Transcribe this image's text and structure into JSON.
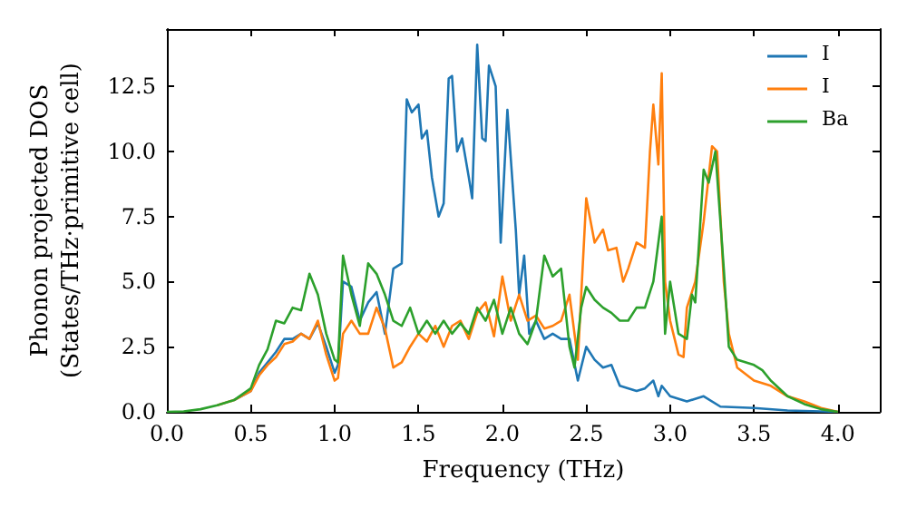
{
  "chart_data": {
    "type": "line",
    "xlabel": "Frequency (THz)",
    "ylabel": "Phonon projected DOS\n(States/THz·primitive cell)",
    "xlim": [
      0,
      4.25
    ],
    "ylim": [
      0,
      14.7
    ],
    "xticks": [
      {
        "value": 0,
        "label": "0.0"
      },
      {
        "value": 0.5,
        "label": "0.5"
      },
      {
        "value": 1,
        "label": "1.0"
      },
      {
        "value": 1.5,
        "label": "1.5"
      },
      {
        "value": 2,
        "label": "2.0"
      },
      {
        "value": 2.5,
        "label": "2.5"
      },
      {
        "value": 3,
        "label": "3.0"
      },
      {
        "value": 3.5,
        "label": "3.5"
      },
      {
        "value": 4,
        "label": "4.0"
      }
    ],
    "yticks": [
      {
        "value": 0,
        "label": "0.0"
      },
      {
        "value": 2.5,
        "label": "2.5"
      },
      {
        "value": 5,
        "label": "5.0"
      },
      {
        "value": 7.5,
        "label": "7.5"
      },
      {
        "value": 10,
        "label": "10.0"
      },
      {
        "value": 12.5,
        "label": "12.5"
      }
    ],
    "grid": false,
    "legend": "top right",
    "marker": "none",
    "line_style": "solid",
    "series": [
      {
        "name": "I",
        "color": "#1f77b4",
        "x": [
          0.4,
          0.5,
          0.55,
          0.6,
          0.65,
          0.7,
          0.75,
          0.8,
          0.85,
          0.9,
          0.95,
          1.0,
          1.02,
          1.05,
          1.1,
          1.15,
          1.2,
          1.25,
          1.3,
          1.35,
          1.4,
          1.43,
          1.46,
          1.5,
          1.52,
          1.55,
          1.58,
          1.62,
          1.65,
          1.68,
          1.7,
          1.73,
          1.76,
          1.8,
          1.82,
          1.85,
          1.88,
          1.9,
          1.92,
          1.96,
          1.99,
          2.03,
          2.08,
          2.1,
          2.13,
          2.16,
          2.2,
          2.25,
          2.3,
          2.35,
          2.4,
          2.45,
          2.5,
          2.55,
          2.6,
          2.65,
          2.7,
          2.8,
          2.85,
          2.9,
          2.93,
          2.95,
          3.0,
          3.1,
          3.2,
          3.3,
          3.5,
          3.7,
          4.0
        ],
        "values": [
          0.45,
          0.8,
          1.5,
          1.9,
          2.3,
          2.8,
          2.8,
          3.0,
          2.8,
          3.4,
          2.5,
          1.5,
          1.8,
          5.0,
          4.8,
          3.5,
          4.2,
          4.6,
          3.0,
          5.5,
          5.7,
          12.0,
          11.5,
          11.8,
          10.5,
          10.8,
          9.0,
          7.5,
          8.0,
          12.8,
          12.9,
          10.0,
          10.5,
          9.0,
          8.2,
          14.1,
          10.5,
          10.4,
          13.3,
          12.5,
          6.5,
          11.6,
          7.0,
          4.5,
          6.0,
          3.0,
          3.5,
          2.8,
          3.0,
          2.8,
          2.8,
          1.2,
          2.5,
          2.0,
          1.7,
          1.8,
          1.0,
          0.8,
          0.9,
          1.2,
          0.6,
          1.0,
          0.6,
          0.4,
          0.6,
          0.2,
          0.15,
          0.05,
          0
        ]
      },
      {
        "name": "I",
        "color": "#ff7f0e",
        "x": [
          0.3,
          0.4,
          0.5,
          0.55,
          0.6,
          0.65,
          0.7,
          0.75,
          0.8,
          0.85,
          0.9,
          0.95,
          1.0,
          1.02,
          1.05,
          1.1,
          1.15,
          1.2,
          1.25,
          1.3,
          1.35,
          1.4,
          1.45,
          1.5,
          1.55,
          1.6,
          1.65,
          1.7,
          1.75,
          1.8,
          1.85,
          1.9,
          1.95,
          2.0,
          2.05,
          2.1,
          2.15,
          2.2,
          2.25,
          2.3,
          2.35,
          2.4,
          2.45,
          2.5,
          2.55,
          2.6,
          2.63,
          2.68,
          2.72,
          2.75,
          2.8,
          2.85,
          2.88,
          2.9,
          2.93,
          2.95,
          2.97,
          3.0,
          3.05,
          3.08,
          3.1,
          3.15,
          3.2,
          3.25,
          3.28,
          3.32,
          3.35,
          3.4,
          3.5,
          3.6,
          3.7,
          3.8,
          3.9,
          4.0
        ],
        "values": [
          0.25,
          0.45,
          0.8,
          1.4,
          1.8,
          2.1,
          2.6,
          2.7,
          3.0,
          2.8,
          3.5,
          2.2,
          1.2,
          1.3,
          3.0,
          3.5,
          3.0,
          3.0,
          4.0,
          3.2,
          1.7,
          1.9,
          2.5,
          3.0,
          2.7,
          3.3,
          2.5,
          3.3,
          3.5,
          2.8,
          3.8,
          4.2,
          2.9,
          5.2,
          3.5,
          4.5,
          3.5,
          3.7,
          3.2,
          3.3,
          3.5,
          4.5,
          2.0,
          8.2,
          6.5,
          7.0,
          6.2,
          6.3,
          5.0,
          5.5,
          6.5,
          6.3,
          10.0,
          11.8,
          9.5,
          13.0,
          5.0,
          3.5,
          2.2,
          2.1,
          4.0,
          5.0,
          7.3,
          10.2,
          10.0,
          5.0,
          3.0,
          1.7,
          1.2,
          1.0,
          0.6,
          0.4,
          0.15,
          0
        ]
      },
      {
        "name": "Ba",
        "color": "#2ca02c",
        "x": [
          0,
          0.1,
          0.2,
          0.3,
          0.4,
          0.5,
          0.55,
          0.6,
          0.65,
          0.7,
          0.75,
          0.8,
          0.85,
          0.9,
          0.95,
          1.0,
          1.02,
          1.05,
          1.1,
          1.15,
          1.2,
          1.25,
          1.3,
          1.35,
          1.4,
          1.45,
          1.5,
          1.55,
          1.6,
          1.65,
          1.7,
          1.75,
          1.8,
          1.85,
          1.9,
          1.95,
          2.0,
          2.05,
          2.1,
          2.15,
          2.2,
          2.25,
          2.3,
          2.35,
          2.4,
          2.43,
          2.47,
          2.5,
          2.55,
          2.6,
          2.65,
          2.7,
          2.75,
          2.8,
          2.85,
          2.9,
          2.95,
          2.97,
          3.0,
          3.05,
          3.1,
          3.13,
          3.15,
          3.2,
          3.23,
          3.27,
          3.32,
          3.35,
          3.4,
          3.5,
          3.55,
          3.6,
          3.7,
          3.8,
          3.9,
          4.0
        ],
        "values": [
          0,
          0.02,
          0.1,
          0.25,
          0.45,
          0.9,
          1.8,
          2.4,
          3.5,
          3.4,
          4.0,
          3.9,
          5.3,
          4.5,
          3.0,
          2.0,
          1.9,
          6.0,
          4.5,
          3.3,
          5.7,
          5.3,
          4.5,
          3.5,
          3.3,
          4.0,
          3.0,
          3.5,
          3.0,
          3.5,
          3.0,
          3.4,
          3.0,
          4.0,
          3.5,
          4.3,
          3.0,
          4.0,
          3.0,
          2.6,
          3.5,
          6.0,
          5.2,
          5.5,
          2.5,
          1.7,
          4.0,
          4.8,
          4.3,
          4.0,
          3.8,
          3.5,
          3.5,
          4.0,
          4.0,
          5.0,
          7.5,
          3.0,
          5.0,
          3.0,
          2.8,
          4.5,
          4.2,
          9.3,
          8.8,
          10.0,
          5.5,
          2.5,
          2.0,
          1.8,
          1.6,
          1.2,
          0.6,
          0.3,
          0.1,
          0
        ]
      }
    ]
  }
}
